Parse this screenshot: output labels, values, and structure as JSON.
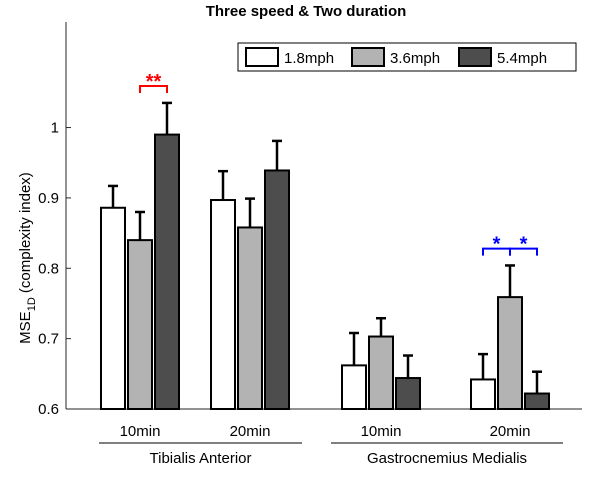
{
  "chart_data": {
    "type": "bar",
    "title": "Three speed & Two duration",
    "ylabel_main": "MSE",
    "ylabel_sub": "1D",
    "ylabel_rest": " (complexity index)",
    "ylim": [
      0.6,
      1.15
    ],
    "yticks": [
      0.6,
      0.7,
      0.8,
      0.9,
      1
    ],
    "ytick_labels": [
      "0.6",
      "0.7",
      "0.8",
      "0.9",
      "1"
    ],
    "grid": false,
    "legend_position": "top-right",
    "categories": [
      "10min",
      "20min",
      "10min",
      "20min"
    ],
    "groups": [
      {
        "label": "Tibialis Anterior",
        "category_indices": [
          0,
          1
        ]
      },
      {
        "label": "Gastrocnemius Medialis",
        "category_indices": [
          2,
          3
        ]
      }
    ],
    "series": [
      {
        "name": "1.8mph",
        "color": "#ffffff",
        "values": [
          0.886,
          0.897,
          0.662,
          0.642
        ],
        "errors": [
          0.031,
          0.041,
          0.046,
          0.036
        ]
      },
      {
        "name": "3.6mph",
        "color": "#b3b3b3",
        "values": [
          0.84,
          0.858,
          0.703,
          0.759
        ],
        "errors": [
          0.04,
          0.041,
          0.026,
          0.045
        ]
      },
      {
        "name": "5.4mph",
        "color": "#4d4d4d",
        "values": [
          0.99,
          0.939,
          0.644,
          0.622
        ],
        "errors": [
          0.045,
          0.042,
          0.032,
          0.031
        ]
      }
    ],
    "significance": [
      {
        "category_index": 0,
        "from_series": 1,
        "to_series": 2,
        "label": "**",
        "color": "#ff0000"
      },
      {
        "category_index": 3,
        "from_series": 0,
        "to_series": 1,
        "label": "*",
        "color": "#0000ff"
      },
      {
        "category_index": 3,
        "from_series": 1,
        "to_series": 2,
        "label": "*",
        "color": "#0000ff"
      }
    ]
  }
}
